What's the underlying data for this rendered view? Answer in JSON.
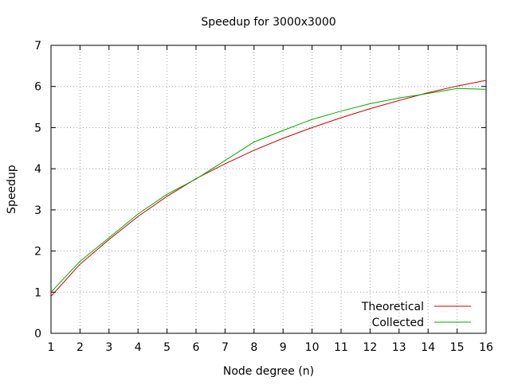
{
  "chart_data": {
    "type": "line",
    "title": "Speedup for 3000x3000",
    "xlabel": "Node degree (n)",
    "ylabel": "Speedup",
    "x": [
      1,
      2,
      3,
      4,
      5,
      6,
      7,
      8,
      9,
      10,
      11,
      12,
      13,
      14,
      15,
      16
    ],
    "xlim": [
      1,
      16
    ],
    "ylim": [
      0,
      7
    ],
    "xticks": [
      "1",
      "2",
      "3",
      "4",
      "5",
      "6",
      "7",
      "8",
      "9",
      "10",
      "11",
      "12",
      "13",
      "14",
      "15",
      "16"
    ],
    "yticks": [
      "0",
      "1",
      "2",
      "3",
      "4",
      "5",
      "6",
      "7"
    ],
    "grid": true,
    "legend_position": "bottom-right",
    "series": [
      {
        "name": "Theoretical",
        "color": "#cc0000",
        "values": [
          0.9,
          1.68,
          2.28,
          2.84,
          3.33,
          3.76,
          4.12,
          4.45,
          4.74,
          5.0,
          5.24,
          5.46,
          5.66,
          5.85,
          6.01,
          6.15
        ]
      },
      {
        "name": "Collected",
        "color": "#00aa00",
        "values": [
          1.0,
          1.75,
          2.32,
          2.9,
          3.38,
          3.75,
          4.2,
          4.65,
          4.93,
          5.2,
          5.4,
          5.58,
          5.72,
          5.83,
          5.95,
          5.93
        ]
      }
    ]
  }
}
